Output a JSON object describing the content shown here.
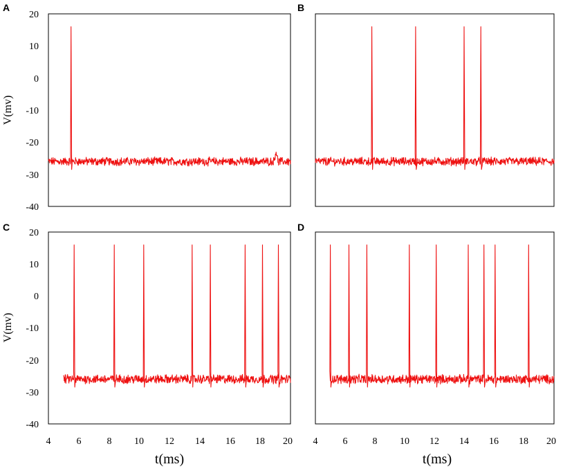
{
  "colors": {
    "trace": "#ee1111",
    "axis": "#000000"
  },
  "chart_data": [
    {
      "type": "line",
      "panel": "A",
      "ylabel": "V(mv)",
      "xlabel": "",
      "xlim": [
        5,
        20
      ],
      "ylim": [
        -40,
        20
      ],
      "x_ticks": [],
      "y_ticks": [
        "20",
        "10",
        "0",
        "-10",
        "-20",
        "-30",
        "-40"
      ],
      "baseline_mv": -26,
      "noise_mv": 1.1,
      "spike_peak_mv": 16,
      "spike_times_ms": [
        6.4
      ],
      "extra_bumps": [
        {
          "t": 19.1,
          "v": -22.5
        }
      ],
      "x_start_ms": 5.0
    },
    {
      "type": "line",
      "panel": "B",
      "ylabel": "",
      "xlabel": "",
      "xlim": [
        5,
        20
      ],
      "ylim": [
        -40,
        20
      ],
      "x_ticks": [],
      "y_ticks": [],
      "baseline_mv": -26,
      "noise_mv": 1.1,
      "spike_peak_mv": 16,
      "spike_times_ms": [
        8.55,
        11.3,
        14.35,
        15.4
      ],
      "extra_bumps": [],
      "x_start_ms": 5.0
    },
    {
      "type": "line",
      "panel": "C",
      "ylabel": "V(mv)",
      "xlabel": "t(ms)",
      "xlim": [
        4,
        20
      ],
      "ylim": [
        -40,
        20
      ],
      "x_ticks": [
        "4",
        "6",
        "8",
        "10",
        "12",
        "14",
        "16",
        "18",
        "20"
      ],
      "y_ticks": [
        "20",
        "10",
        "0",
        "-10",
        "-20",
        "-30",
        "-40"
      ],
      "baseline_mv": -26,
      "noise_mv": 1.2,
      "spike_peak_mv": 16,
      "spike_times_ms": [
        5.7,
        8.35,
        10.3,
        13.5,
        14.7,
        17.0,
        18.15,
        19.2
      ],
      "extra_bumps": [],
      "x_start_ms": 5.0
    },
    {
      "type": "line",
      "panel": "D",
      "ylabel": "",
      "xlabel": "t(ms)",
      "xlim": [
        4,
        20
      ],
      "ylim": [
        -40,
        20
      ],
      "x_ticks": [
        "4",
        "6",
        "8",
        "10",
        "12",
        "14",
        "16",
        "18",
        "20"
      ],
      "y_ticks": [],
      "baseline_mv": -26,
      "noise_mv": 1.2,
      "spike_peak_mv": 16,
      "spike_times_ms": [
        5.0,
        6.25,
        7.45,
        10.3,
        12.1,
        14.25,
        15.3,
        16.05,
        18.3
      ],
      "extra_bumps": [],
      "x_start_ms": 5.0
    }
  ]
}
